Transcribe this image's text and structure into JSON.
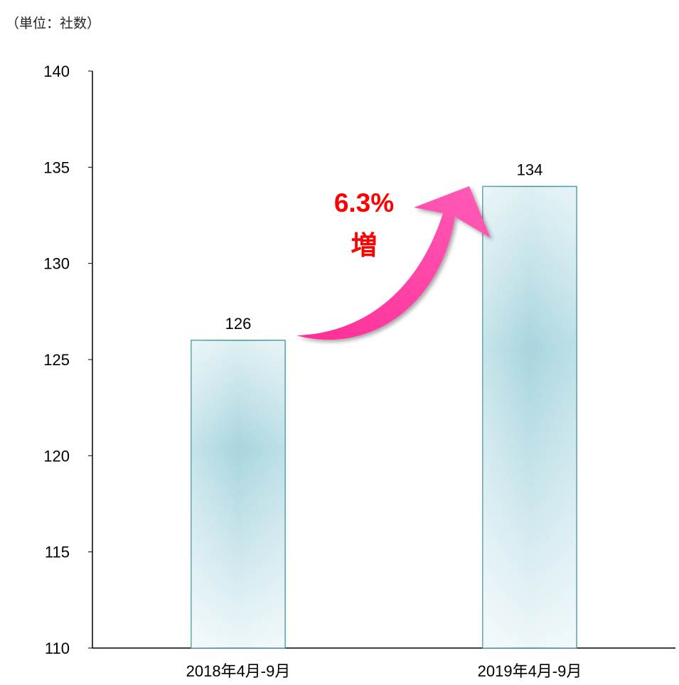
{
  "chart_data": {
    "type": "bar",
    "unit_label": "（単位：社数）",
    "categories": [
      "2018年4月-9月",
      "2019年4月-9月"
    ],
    "values": [
      126,
      134
    ],
    "ylim": [
      110,
      140
    ],
    "yticks": [
      110,
      115,
      120,
      125,
      130,
      135,
      140
    ],
    "grid": false,
    "legend": "none",
    "annotation": {
      "percent": "6.3%",
      "word": "増"
    },
    "colors": {
      "bar_fill": "#a7d3dc",
      "bar_stroke": "#3f8f9d",
      "arrow": "#ff3aa0",
      "annotation_text": "#ff0000"
    }
  }
}
